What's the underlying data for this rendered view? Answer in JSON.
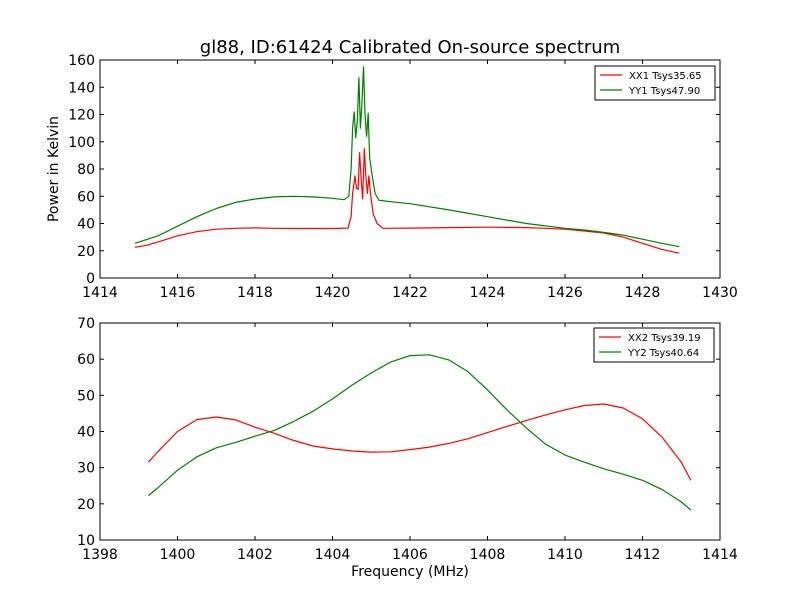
{
  "chart_data": [
    {
      "type": "line",
      "title": "gl88, ID:61424 Calibrated On-source spectrum",
      "xlabel": "",
      "ylabel": "Power in Kelvin",
      "xlim": [
        1414,
        1430
      ],
      "ylim": [
        0,
        160
      ],
      "xticks": [
        1414,
        1416,
        1418,
        1420,
        1422,
        1424,
        1426,
        1428,
        1430
      ],
      "yticks": [
        0,
        20,
        40,
        60,
        80,
        100,
        120,
        140,
        160
      ],
      "grid": false,
      "legend_position": "top-right",
      "series": [
        {
          "name": "XX1 Tsys35.65",
          "color": "#ff0000",
          "points": [
            [
              1414.9,
              22.5
            ],
            [
              1415.2,
              24
            ],
            [
              1415.5,
              26.5
            ],
            [
              1416,
              31
            ],
            [
              1416.5,
              34
            ],
            [
              1417,
              35.8
            ],
            [
              1417.5,
              36.5
            ],
            [
              1418,
              36.8
            ],
            [
              1418.5,
              36.5
            ],
            [
              1419,
              36.3
            ],
            [
              1419.5,
              36.3
            ],
            [
              1420,
              36.3
            ],
            [
              1420.4,
              36.6
            ],
            [
              1420.48,
              45
            ],
            [
              1420.52,
              62
            ],
            [
              1420.58,
              75
            ],
            [
              1420.62,
              66
            ],
            [
              1420.66,
              65
            ],
            [
              1420.7,
              92
            ],
            [
              1420.74,
              72
            ],
            [
              1420.78,
              58
            ],
            [
              1420.82,
              95
            ],
            [
              1420.86,
              75
            ],
            [
              1420.9,
              62
            ],
            [
              1420.94,
              75
            ],
            [
              1420.98,
              62
            ],
            [
              1421.05,
              47
            ],
            [
              1421.15,
              40
            ],
            [
              1421.3,
              36.5
            ],
            [
              1422,
              36.6
            ],
            [
              1423,
              37
            ],
            [
              1424,
              37.3
            ],
            [
              1425,
              37
            ],
            [
              1425.5,
              36.5
            ],
            [
              1426,
              35.8
            ],
            [
              1426.5,
              34.5
            ],
            [
              1427,
              33
            ],
            [
              1427.5,
              30
            ],
            [
              1428,
              25.5
            ],
            [
              1428.5,
              21
            ],
            [
              1428.95,
              18.2
            ]
          ]
        },
        {
          "name": "YY1 Tsys47.90",
          "color": "#008000",
          "points": [
            [
              1414.9,
              25.5
            ],
            [
              1415.5,
              31
            ],
            [
              1416,
              38
            ],
            [
              1416.5,
              45
            ],
            [
              1417,
              51
            ],
            [
              1417.5,
              55.5
            ],
            [
              1418,
              58
            ],
            [
              1418.5,
              59.5
            ],
            [
              1419,
              60
            ],
            [
              1419.5,
              59.5
            ],
            [
              1420,
              58.5
            ],
            [
              1420.3,
              57.5
            ],
            [
              1420.42,
              60
            ],
            [
              1420.48,
              80
            ],
            [
              1420.52,
              110
            ],
            [
              1420.56,
              122
            ],
            [
              1420.6,
              103
            ],
            [
              1420.64,
              115
            ],
            [
              1420.68,
              147
            ],
            [
              1420.72,
              110
            ],
            [
              1420.76,
              128
            ],
            [
              1420.8,
              155
            ],
            [
              1420.84,
              120
            ],
            [
              1420.88,
              104
            ],
            [
              1420.92,
              121
            ],
            [
              1420.96,
              88
            ],
            [
              1421.02,
              76
            ],
            [
              1421.1,
              62
            ],
            [
              1421.2,
              57
            ],
            [
              1421.5,
              56
            ],
            [
              1422,
              54.5
            ],
            [
              1423,
              50
            ],
            [
              1424,
              45
            ],
            [
              1425,
              40
            ],
            [
              1426,
              36.5
            ],
            [
              1426.5,
              35.2
            ],
            [
              1427,
              33.5
            ],
            [
              1427.5,
              31.5
            ],
            [
              1428,
              28.5
            ],
            [
              1428.5,
              25.5
            ],
            [
              1428.95,
              23
            ]
          ]
        }
      ]
    },
    {
      "type": "line",
      "title": "",
      "xlabel": "Frequency (MHz)",
      "ylabel": "",
      "xlim": [
        1398,
        1414
      ],
      "ylim": [
        10,
        70
      ],
      "xticks": [
        1398,
        1400,
        1402,
        1404,
        1406,
        1408,
        1410,
        1412,
        1414
      ],
      "yticks": [
        10,
        20,
        30,
        40,
        50,
        60,
        70
      ],
      "grid": false,
      "legend_position": "top-right",
      "series": [
        {
          "name": "XX2 Tsys39.19",
          "color": "#ff0000",
          "points": [
            [
              1399.25,
              31.5
            ],
            [
              1399.5,
              34.5
            ],
            [
              1400,
              40
            ],
            [
              1400.5,
              43.3
            ],
            [
              1401,
              44
            ],
            [
              1401.5,
              43.2
            ],
            [
              1402,
              41.2
            ],
            [
              1402.5,
              39.5
            ],
            [
              1403,
              37.5
            ],
            [
              1403.5,
              36
            ],
            [
              1404,
              35.2
            ],
            [
              1404.5,
              34.6
            ],
            [
              1405,
              34.3
            ],
            [
              1405.5,
              34.4
            ],
            [
              1406,
              35
            ],
            [
              1406.5,
              35.7
            ],
            [
              1407,
              36.7
            ],
            [
              1407.5,
              38
            ],
            [
              1408,
              39.7
            ],
            [
              1408.5,
              41.4
            ],
            [
              1409,
              43
            ],
            [
              1409.5,
              44.6
            ],
            [
              1410,
              46
            ],
            [
              1410.5,
              47.2
            ],
            [
              1411,
              47.6
            ],
            [
              1411.5,
              46.5
            ],
            [
              1412,
              43.5
            ],
            [
              1412.5,
              38.5
            ],
            [
              1413,
              31.5
            ],
            [
              1413.25,
              26.5
            ]
          ]
        },
        {
          "name": "YY2 Tsys40.64",
          "color": "#008000",
          "points": [
            [
              1399.25,
              22.3
            ],
            [
              1399.5,
              24.5
            ],
            [
              1400,
              29.3
            ],
            [
              1400.5,
              33
            ],
            [
              1401,
              35.5
            ],
            [
              1401.5,
              37
            ],
            [
              1402,
              38.7
            ],
            [
              1402.5,
              40.3
            ],
            [
              1403,
              42.8
            ],
            [
              1403.5,
              45.6
            ],
            [
              1404,
              49
            ],
            [
              1404.5,
              52.8
            ],
            [
              1405,
              56.2
            ],
            [
              1405.5,
              59.2
            ],
            [
              1406,
              61
            ],
            [
              1406.5,
              61.2
            ],
            [
              1407,
              59.8
            ],
            [
              1407.5,
              56.5
            ],
            [
              1408,
              51.5
            ],
            [
              1408.5,
              46
            ],
            [
              1409,
              41
            ],
            [
              1409.5,
              36.5
            ],
            [
              1410,
              33.5
            ],
            [
              1410.5,
              31.5
            ],
            [
              1411,
              29.7
            ],
            [
              1411.5,
              28.2
            ],
            [
              1412,
              26.5
            ],
            [
              1412.5,
              24
            ],
            [
              1413,
              20.5
            ],
            [
              1413.25,
              18.3
            ]
          ]
        }
      ]
    }
  ]
}
